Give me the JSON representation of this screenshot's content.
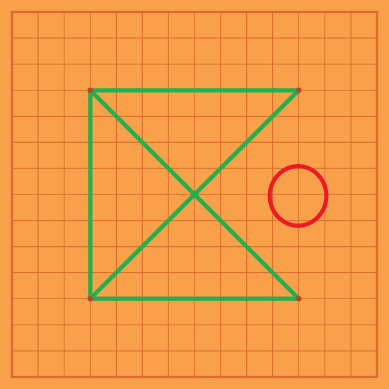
{
  "board": {
    "cells_x": 14,
    "cells_y": 14,
    "colors": {
      "background": "#f9a04a",
      "grid_line": "#d9692a",
      "border": "#d9692a",
      "player_green": "#22b14c",
      "player_red": "#ed1c24",
      "vertex_dot": "#b5482a"
    }
  },
  "pieces": {
    "green_lines": [
      {
        "from": [
          3,
          3
        ],
        "to": [
          11,
          3
        ]
      },
      {
        "from": [
          3,
          3
        ],
        "to": [
          3,
          11
        ]
      },
      {
        "from": [
          3,
          11
        ],
        "to": [
          11,
          11
        ]
      },
      {
        "from": [
          3,
          3
        ],
        "to": [
          11,
          11
        ]
      },
      {
        "from": [
          11,
          3
        ],
        "to": [
          3,
          11
        ]
      }
    ],
    "green_vertices": [
      [
        3,
        3
      ],
      [
        11,
        3
      ],
      [
        3,
        11
      ],
      [
        11,
        11
      ]
    ],
    "red_circles": [
      {
        "center": [
          11,
          7
        ]
      }
    ]
  }
}
